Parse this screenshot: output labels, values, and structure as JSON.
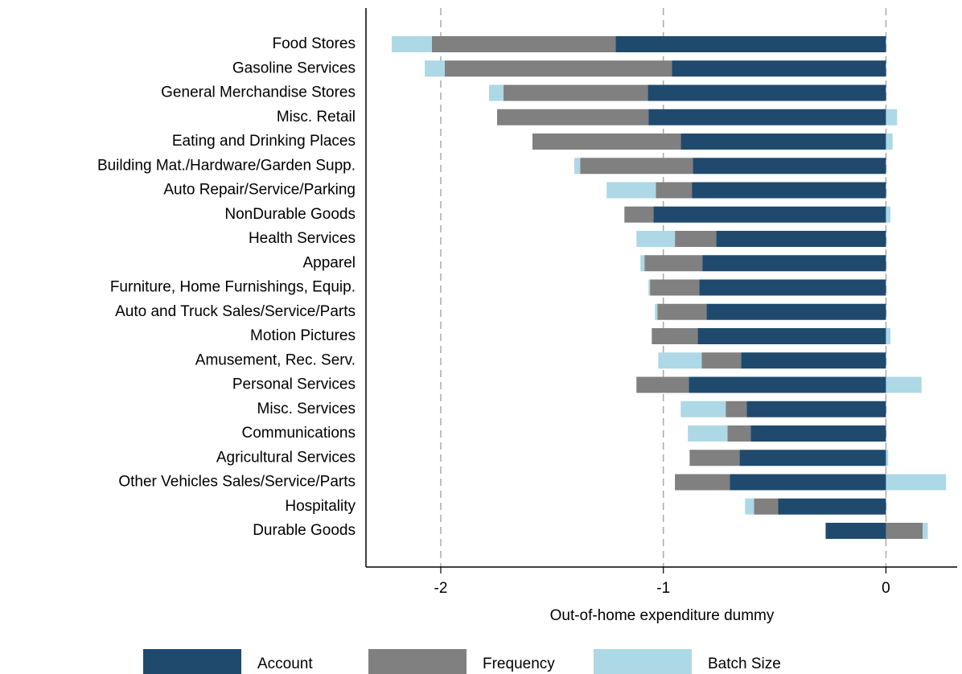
{
  "chart_data": {
    "type": "stacked-barh",
    "xlabel": "Out-of-home expenditure dummy",
    "categories": [
      "Food Stores",
      "Gasoline Services",
      "General Merchandise Stores",
      "Misc. Retail",
      "Eating and Drinking Places",
      "Building Mat./Hardware/Garden Supp.",
      "Auto Repair/Service/Parking",
      "NonDurable Goods",
      "Health Services",
      "Apparel",
      "Furniture, Home Furnishings, Equip.",
      "Auto and Truck Sales/Service/Parts",
      "Motion Pictures",
      "Amusement, Rec. Serv.",
      "Personal Services",
      "Misc. Services",
      "Communications",
      "Agricultural Services",
      "Other Vehicles Sales/Service/Parts",
      "Hospitality",
      "Durable Goods"
    ],
    "series": [
      {
        "name": "Account",
        "color": "#1f4a6e",
        "values": [
          -1.215,
          -0.962,
          -1.07,
          -1.067,
          -0.922,
          -0.868,
          -0.872,
          -1.045,
          -0.763,
          -0.825,
          -0.839,
          -0.806,
          -0.846,
          -0.651,
          -0.886,
          -0.626,
          -0.608,
          -0.658,
          -0.702,
          -0.484,
          -0.271
        ]
      },
      {
        "name": "Frequency",
        "color": "#808080",
        "values": [
          -0.825,
          -1.02,
          -0.648,
          -0.68,
          -0.666,
          -0.506,
          -0.162,
          -0.13,
          -0.185,
          -0.26,
          -0.221,
          -0.221,
          -0.206,
          -0.177,
          -0.235,
          -0.094,
          -0.104,
          -0.224,
          -0.246,
          -0.109,
          0.165
        ]
      },
      {
        "name": "Batch Size",
        "color": "#add8e6",
        "values": [
          -0.18,
          -0.09,
          -0.065,
          0.05,
          0.03,
          -0.026,
          -0.221,
          0.02,
          -0.173,
          -0.018,
          -0.007,
          -0.011,
          0.02,
          -0.195,
          0.16,
          -0.202,
          -0.178,
          0.01,
          0.27,
          -0.04,
          0.023
        ]
      }
    ],
    "xlim": [
      -2.336,
      0.32
    ],
    "xticks": [
      -2,
      -1,
      0
    ],
    "grid": true
  }
}
